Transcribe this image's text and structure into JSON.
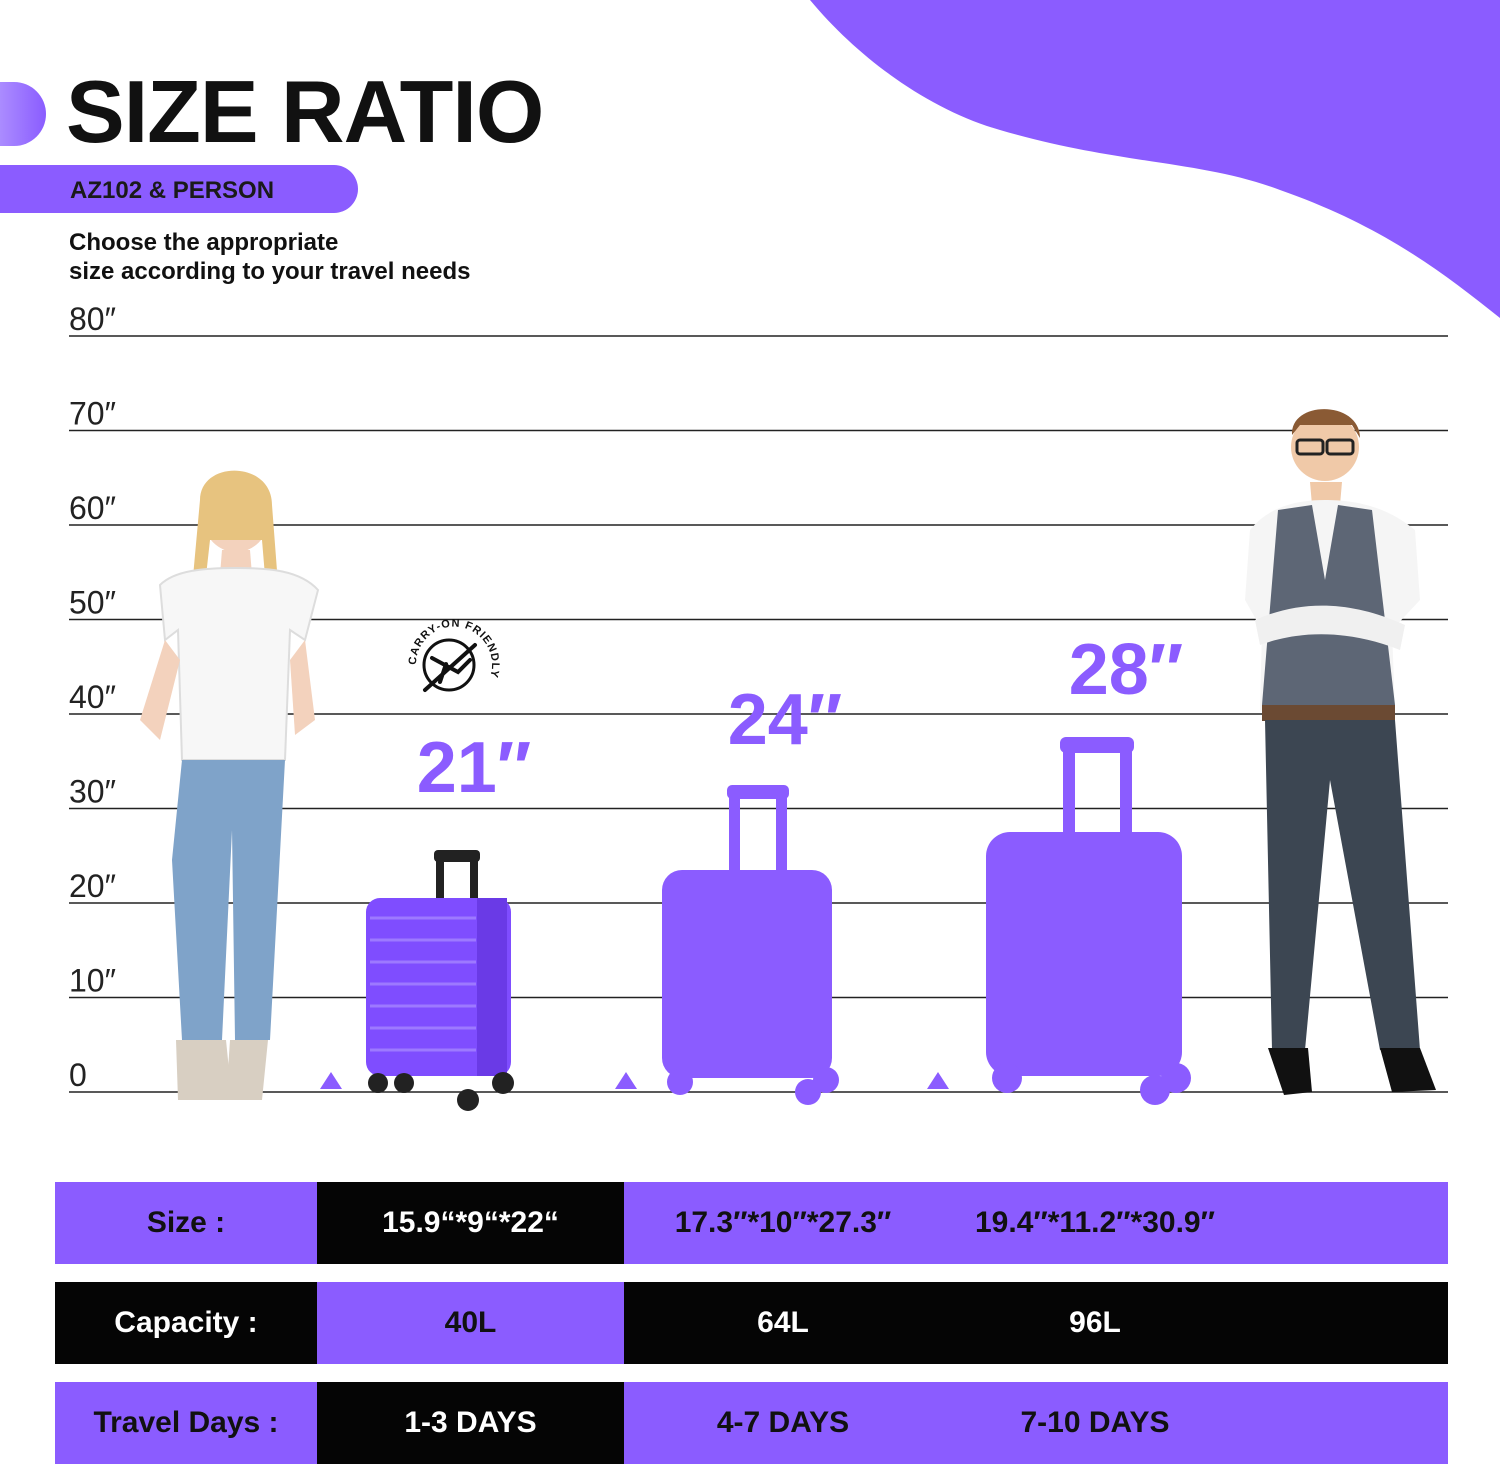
{
  "header": {
    "title": "SIZE RATIO",
    "subtitle": "AZ102 & PERSON",
    "tagline_line1": "Choose the appropriate",
    "tagline_line2": "size according to your travel needs"
  },
  "colors": {
    "accent": "#8b5cff",
    "dark": "#050505",
    "light_accent": "#ab8cff"
  },
  "scale": {
    "ticks": [
      "80″",
      "70″",
      "60″",
      "50″",
      "40″",
      "30″",
      "20″",
      "10″",
      "0"
    ]
  },
  "badge": {
    "text": "CARRY-ON FRIENDLY",
    "icon": "airplane-globe-icon"
  },
  "suitcases": [
    {
      "label": "21″",
      "height_in": 22,
      "icon": "purple-suitcase-21"
    },
    {
      "label": "24″",
      "height_in": 27.3,
      "icon": "purple-suitcase-silhouette-24"
    },
    {
      "label": "28″",
      "height_in": 30.9,
      "icon": "purple-suitcase-silhouette-28"
    }
  ],
  "people": [
    {
      "icon": "woman-standing-figure"
    },
    {
      "icon": "man-standing-figure"
    }
  ],
  "table": {
    "rows": [
      {
        "label": "Size :",
        "values": [
          "15.9“*9“*22“",
          "17.3″*10″*27.3″",
          "19.4″*11.2″*30.9″"
        ]
      },
      {
        "label": "Capacity :",
        "values": [
          "40L",
          "64L",
          "96L"
        ]
      },
      {
        "label": "Travel Days :",
        "values": [
          "1-3 DAYS",
          "4-7 DAYS",
          "7-10 DAYS"
        ]
      }
    ]
  }
}
